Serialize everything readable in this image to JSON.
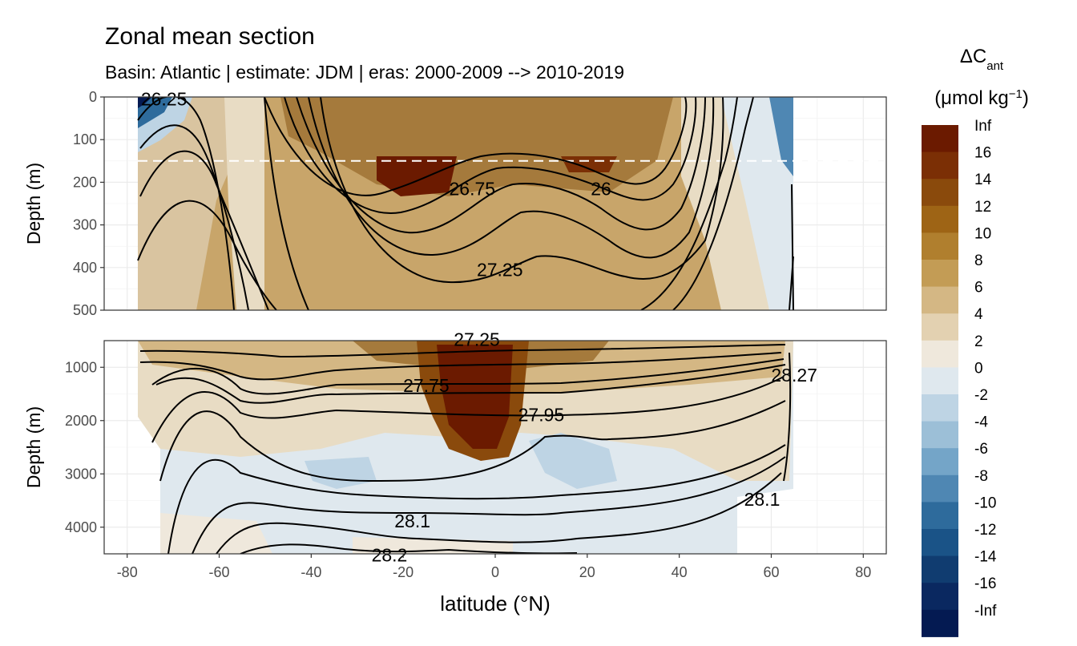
{
  "chart_data": {
    "type": "heatmap",
    "title": "Zonal mean section",
    "subtitle": "Basin: Atlantic | estimate: JDM  | eras: 2000-2009 --> 2010-2019",
    "xlabel": "latitude (°N)",
    "x_ticks": [
      -80,
      -60,
      -40,
      -20,
      0,
      20,
      40,
      60,
      80
    ],
    "xlim": [
      -85,
      85
    ],
    "panels": [
      {
        "name": "upper",
        "ylabel": "Depth (m)",
        "ylim": [
          0,
          500
        ],
        "y_ticks": [
          0,
          100,
          200,
          300,
          400,
          500
        ],
        "reference_depth": 150,
        "contour_labels": [
          {
            "text": "26.25",
            "lat": -72,
            "depth": 5
          },
          {
            "text": "26.75",
            "lat": -5,
            "depth": 215
          },
          {
            "text": "26",
            "lat": 23,
            "depth": 215
          },
          {
            "text": "27.25",
            "lat": 1,
            "depth": 405
          }
        ]
      },
      {
        "name": "lower",
        "ylabel": "Depth (m)",
        "ylim": [
          500,
          4500
        ],
        "y_ticks": [
          1000,
          2000,
          3000,
          4000
        ],
        "contour_labels": [
          {
            "text": "27.25",
            "lat": -4,
            "depth": 480
          },
          {
            "text": "27.75",
            "lat": -15,
            "depth": 1340
          },
          {
            "text": "27.95",
            "lat": 10,
            "depth": 1890
          },
          {
            "text": "28.1",
            "lat": -18,
            "depth": 3880
          },
          {
            "text": "28.2",
            "lat": -23,
            "depth": 4520
          },
          {
            "text": "28.1",
            "lat": 58,
            "depth": 3480
          },
          {
            "text": "28.27",
            "lat": 65,
            "depth": 1150
          }
        ]
      }
    ],
    "legend": {
      "title": "ΔC",
      "title_sub": "ant",
      "unit_text": "(μmol kg",
      "unit_sup": "−1",
      "unit_close": ")",
      "placement": "right",
      "labels": [
        "Inf",
        "16",
        "14",
        "12",
        "10",
        "8",
        "6",
        "4",
        "2",
        "0",
        "-2",
        "-4",
        "-6",
        "-8",
        "-10",
        "-12",
        "-14",
        "-16",
        "-Inf"
      ],
      "colors": [
        "#6b1a00",
        "#7b2f05",
        "#8a4a0c",
        "#9e6415",
        "#b07f2e",
        "#c39c55",
        "#d4b784",
        "#e3d1b1",
        "#efe8dc",
        "#dfe8ee",
        "#bed4e4",
        "#9cbfd7",
        "#74a5c8",
        "#4f87b3",
        "#2e6b9c",
        "#1a5387",
        "#103c70",
        "#0a2860",
        "#041a52"
      ]
    }
  }
}
